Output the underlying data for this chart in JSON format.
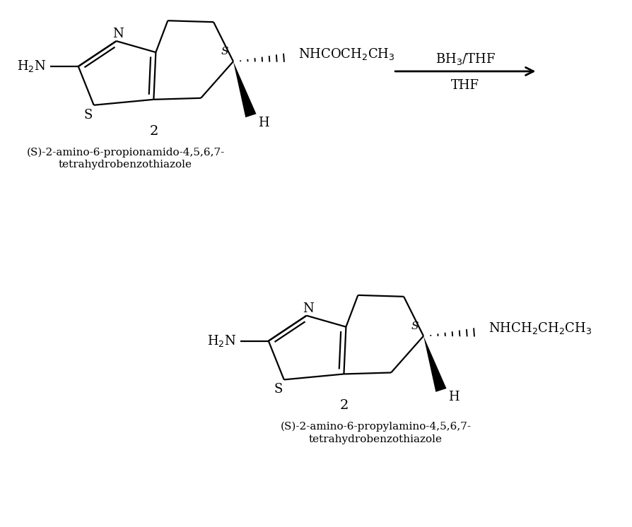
{
  "bg_color": "#ffffff",
  "figsize": [
    8.95,
    7.46
  ],
  "dpi": 100,
  "mol1_label": "2",
  "mol1_name_line1": "(S)-2-amino-6-propionamido-4,5,6,7-",
  "mol1_name_line2": "tetrahydrobenzothiazole",
  "mol2_label": "2",
  "mol2_name_line1": "(S)-2-amino-6-propylamino-4,5,6,7-",
  "mol2_name_line2": "tetrahydrobenzothiazole",
  "arrow_label_top": "BH$_3$/THF",
  "arrow_label_bottom": "THF",
  "font_size_mol": 13,
  "font_size_label": 14,
  "font_size_name": 11,
  "font_size_arrow": 13,
  "line_color": "#000000",
  "line_width": 1.6,
  "bond_width": 1.6
}
